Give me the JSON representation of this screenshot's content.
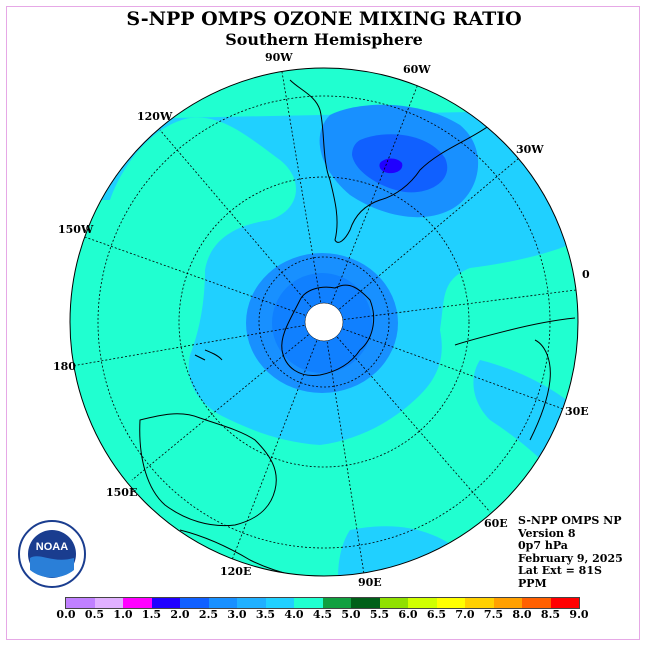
{
  "title": "S-NPP OMPS OZONE MIXING RATIO",
  "subtitle": "Southern Hemisphere",
  "longitude_labels": [
    "90W",
    "60W",
    "30W",
    "0",
    "30E",
    "60E",
    "90E",
    "120E",
    "150E",
    "180",
    "150W",
    "120W"
  ],
  "info": {
    "line1": "S-NPP OMPS NP",
    "line2": "Version 8",
    "line3": "0p7 hPa",
    "line4": "February 9, 2025",
    "line5": "Lat Ext = 81S",
    "line6": "PPM"
  },
  "logo_text": "NOAA",
  "colorbar": {
    "ticks": [
      "0.0",
      "0.5",
      "1.0",
      "1.5",
      "2.0",
      "2.5",
      "3.0",
      "3.5",
      "4.0",
      "4.5",
      "5.0",
      "5.5",
      "6.0",
      "6.5",
      "7.0",
      "7.5",
      "8.0",
      "8.5",
      "9.0"
    ],
    "colors": [
      "#c080ff",
      "#e0b0ff",
      "#ff00ff",
      "#2000ff",
      "#1060ff",
      "#1890ff",
      "#20b0ff",
      "#20d0ff",
      "#20ffd0",
      "#10a040",
      "#006018",
      "#90e000",
      "#d0ff00",
      "#ffff00",
      "#ffd000",
      "#ffa000",
      "#ff6000",
      "#ff0000",
      "#a06040"
    ]
  },
  "colors": {
    "outer_field": "#20ffd0",
    "mid_field": "#20d0ff",
    "inner_ring": "#20b0ff",
    "core": "#1890ff",
    "max_spot": "#2000ff"
  }
}
